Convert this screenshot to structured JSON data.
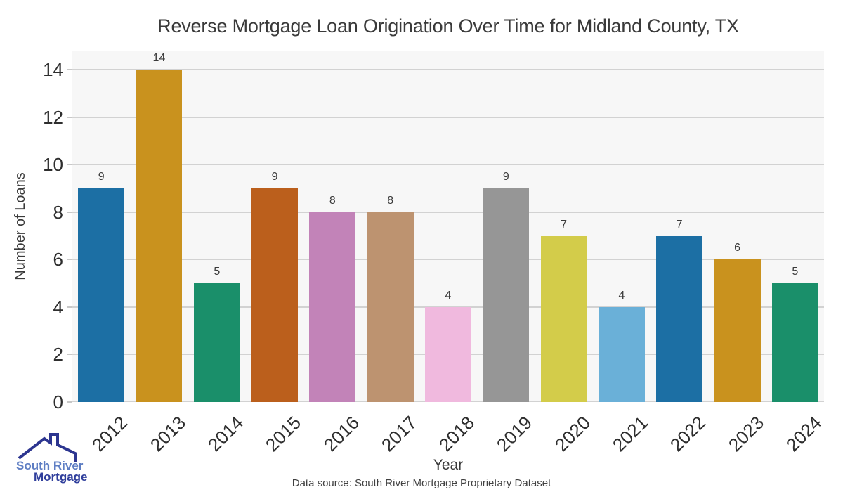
{
  "chart_data": {
    "type": "bar",
    "title": "Reverse Mortgage Loan Origination Over Time for Midland County, TX",
    "xlabel": "Year",
    "ylabel": "Number of Loans",
    "categories": [
      "2012",
      "2013",
      "2014",
      "2015",
      "2016",
      "2017",
      "2018",
      "2019",
      "2020",
      "2021",
      "2022",
      "2023",
      "2024"
    ],
    "values": [
      9,
      14,
      5,
      9,
      8,
      8,
      4,
      9,
      7,
      4,
      7,
      6,
      5
    ],
    "bar_colors": [
      "#1c6fa4",
      "#c9921e",
      "#1a8f6a",
      "#bb5f1c",
      "#c283b8",
      "#bd9370",
      "#f0b9de",
      "#969696",
      "#d3cc4a",
      "#6ab0d8",
      "#1c6fa4",
      "#c9921e",
      "#1a8f6a"
    ],
    "yticks": [
      0,
      2,
      4,
      6,
      8,
      10,
      12,
      14
    ],
    "ylim": [
      0,
      14.8
    ],
    "grid": true,
    "legend_position": "none",
    "plot_bg": "#f7f7f7",
    "grid_color": "#d2d2d2",
    "tick_text_color": "#2e2e2e",
    "title_color": "#3a3a3a"
  },
  "footer": {
    "source_note": "Data source: South River Mortgage Proprietary Dataset"
  },
  "logo": {
    "line1": "South River",
    "line2": "Mortgage",
    "line1_color": "#5d7dc3",
    "line2_color": "#303f9c",
    "roof_color": "#2c3590"
  }
}
